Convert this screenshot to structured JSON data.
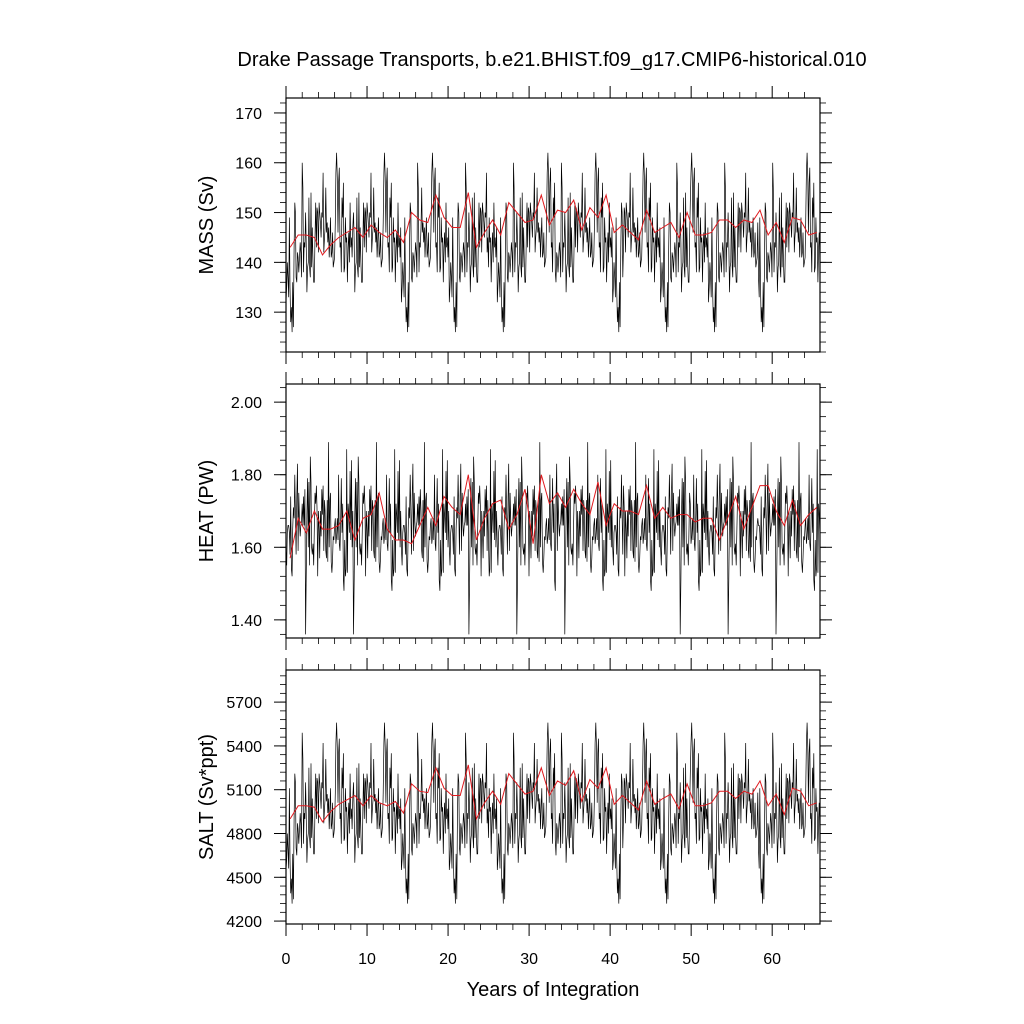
{
  "chart_data": {
    "title": "Drake Passage Transports, b.e21.BHIST.f09_g17.CMIP6-historical.010",
    "type": "line",
    "xlabel": "Years of Integration",
    "xlim": [
      0,
      65.9
    ],
    "xticks": [
      0,
      10,
      20,
      30,
      40,
      50,
      60
    ],
    "xtick_labels": [
      "0",
      "10",
      "20",
      "30",
      "40",
      "50",
      "60"
    ],
    "grid": false,
    "legend": "none",
    "colors": {
      "monthly": "#000000",
      "annual": "#e0191e",
      "frame": "#000000"
    },
    "panels": [
      {
        "ylabel": "MASS (Sv)",
        "ylim": [
          122,
          173
        ],
        "yticks": [
          130,
          140,
          150,
          160,
          170
        ],
        "ytick_labels": [
          "130",
          "140",
          "150",
          "160",
          "170"
        ],
        "annual_mean": {
          "x": [
            0.5,
            1.5,
            2.5,
            3.5,
            4.5,
            5.5,
            6.5,
            7.5,
            8.5,
            9.5,
            10.5,
            11.5,
            12.5,
            13.5,
            14.5,
            15.5,
            16.5,
            17.5,
            18.5,
            19.5,
            20.5,
            21.5,
            22.5,
            23.5,
            24.5,
            25.5,
            26.5,
            27.5,
            28.5,
            29.5,
            30.5,
            31.5,
            32.5,
            33.5,
            34.5,
            35.5,
            36.5,
            37.5,
            38.5,
            39.5,
            40.5,
            41.5,
            42.5,
            43.5,
            44.5,
            45.5,
            46.5,
            47.5,
            48.5,
            49.5,
            50.5,
            51.5,
            52.5,
            53.5,
            54.5,
            55.5,
            56.5,
            57.5,
            58.5,
            59.5,
            60.5,
            61.5,
            62.5,
            63.5,
            64.5,
            65.5
          ],
          "y": [
            143,
            145.5,
            145.5,
            145,
            141.5,
            143.5,
            145,
            146,
            147,
            145,
            147.5,
            146,
            145,
            146.5,
            144,
            150,
            148.5,
            148,
            153.5,
            149,
            147,
            147,
            154,
            143,
            146,
            148.5,
            145.5,
            152,
            150,
            148,
            148.5,
            153.5,
            147.5,
            150.5,
            150,
            152.5,
            146.5,
            151,
            149,
            153.5,
            146,
            147.5,
            146,
            144.5,
            150.5,
            146,
            147,
            148,
            145,
            150,
            145.5,
            145.5,
            146,
            148.5,
            148.5,
            147,
            148.5,
            148,
            150.5,
            145.5,
            148,
            144,
            149,
            148.5,
            145.5,
            146
          ]
        },
        "monthly": {
          "x_start": 0,
          "x_step": 0.0833,
          "y": [
            132,
            145,
            138,
            150,
            141,
            137,
            147,
            135,
            152,
            139,
            144,
            148,
            136,
            155,
            140,
            143,
            149,
            134,
            158,
            142,
            146,
            137,
            151,
            144,
            139,
            162,
            141,
            148,
            133,
            150,
            145,
            140,
            157,
            138,
            144,
            149,
            142,
            136,
            153,
            146,
            141,
            147,
            135,
            152,
            143,
            139,
            156,
            144,
            141,
            128,
            150,
            146,
            137,
            159,
            142,
            145,
            131,
            148,
            140,
            154,
            143,
            137,
            149,
            126,
            145,
            152,
            139,
            144,
            160,
            141,
            136,
            150,
            143,
            147,
            138,
            155,
            142,
            127,
            149,
            145,
            140,
            153,
            138,
            146,
            143,
            158,
            141,
            136,
            149,
            144,
            139,
            152,
            142,
            147,
            136,
            156,
            143,
            140,
            150,
            145
          ]
        }
      },
      {
        "ylabel": "HEAT (PW)",
        "ylim": [
          1.35,
          2.05
        ],
        "yticks": [
          1.4,
          1.6,
          1.8,
          2.0
        ],
        "ytick_labels": [
          "1.40",
          "1.60",
          "1.80",
          "2.00"
        ],
        "annual_mean": {
          "x": [
            0.5,
            1.5,
            2.5,
            3.5,
            4.5,
            5.5,
            6.5,
            7.5,
            8.5,
            9.5,
            10.5,
            11.5,
            12.5,
            13.5,
            14.5,
            15.5,
            16.5,
            17.5,
            18.5,
            19.5,
            20.5,
            21.5,
            22.5,
            23.5,
            24.5,
            25.5,
            26.5,
            27.5,
            28.5,
            29.5,
            30.5,
            31.5,
            32.5,
            33.5,
            34.5,
            35.5,
            36.5,
            37.5,
            38.5,
            39.5,
            40.5,
            41.5,
            42.5,
            43.5,
            44.5,
            45.5,
            46.5,
            47.5,
            48.5,
            49.5,
            50.5,
            51.5,
            52.5,
            53.5,
            54.5,
            55.5,
            56.5,
            57.5,
            58.5,
            59.5,
            60.5,
            61.5,
            62.5,
            63.5,
            64.5,
            65.5
          ],
          "y": [
            1.57,
            1.68,
            1.64,
            1.7,
            1.65,
            1.65,
            1.66,
            1.7,
            1.62,
            1.68,
            1.69,
            1.75,
            1.65,
            1.62,
            1.62,
            1.61,
            1.66,
            1.71,
            1.66,
            1.74,
            1.71,
            1.69,
            1.8,
            1.62,
            1.68,
            1.72,
            1.73,
            1.65,
            1.69,
            1.76,
            1.61,
            1.8,
            1.72,
            1.75,
            1.71,
            1.76,
            1.72,
            1.69,
            1.78,
            1.66,
            1.72,
            1.7,
            1.7,
            1.69,
            1.77,
            1.68,
            1.71,
            1.68,
            1.69,
            1.69,
            1.67,
            1.68,
            1.68,
            1.62,
            1.68,
            1.74,
            1.65,
            1.71,
            1.77,
            1.77,
            1.7,
            1.66,
            1.73,
            1.66,
            1.69,
            1.71
          ]
        },
        "monthly": {
          "x_start": 0,
          "x_step": 0.0833,
          "y": [
            1.6,
            1.75,
            1.48,
            1.36,
            1.66,
            1.58,
            1.7,
            1.55,
            1.72,
            1.62,
            1.51,
            1.68,
            1.74,
            1.59,
            1.64,
            1.77,
            1.52,
            1.69,
            1.61,
            1.83,
            1.57,
            1.66,
            1.71,
            1.54,
            1.79,
            1.63,
            1.59,
            1.73,
            1.66,
            1.52,
            1.87,
            1.6,
            1.68,
            1.75,
            1.56,
            1.64,
            1.7,
            1.53,
            1.78,
            1.62,
            1.67,
            1.89,
            1.58,
            1.65,
            1.72,
            1.55,
            1.8,
            1.63,
            1.6,
            1.74,
            1.57,
            1.69,
            1.85,
            1.61,
            1.66,
            1.73,
            1.54,
            1.7,
            1.64,
            1.78,
            1.59,
            1.67,
            1.75,
            1.52,
            1.63,
            1.81,
            1.6,
            1.68,
            1.72,
            1.56,
            1.65,
            1.76,
            1.62,
            1.58,
            1.79,
            1.66,
            1.53,
            1.71,
            1.69,
            1.84,
            1.61,
            1.64,
            1.74,
            1.57,
            1.68,
            1.77,
            1.6,
            1.55,
            1.72,
            1.66,
            1.63,
            1.8,
            1.59,
            1.7,
            1.65,
            1.51,
            1.76,
            1.62,
            1.69,
            1.73
          ]
        }
      },
      {
        "ylabel": "SALT (Sv*ppt)",
        "ylim": [
          4180,
          5920
        ],
        "yticks": [
          4200,
          4500,
          4800,
          5100,
          5400,
          5700
        ],
        "ytick_labels": [
          "4200",
          "4500",
          "4800",
          "5100",
          "5400",
          "5700"
        ],
        "annual_mean": {
          "x": [
            0.5,
            1.5,
            2.5,
            3.5,
            4.5,
            5.5,
            6.5,
            7.5,
            8.5,
            9.5,
            10.5,
            11.5,
            12.5,
            13.5,
            14.5,
            15.5,
            16.5,
            17.5,
            18.5,
            19.5,
            20.5,
            21.5,
            22.5,
            23.5,
            24.5,
            25.5,
            26.5,
            27.5,
            28.5,
            29.5,
            30.5,
            31.5,
            32.5,
            33.5,
            34.5,
            35.5,
            36.5,
            37.5,
            38.5,
            39.5,
            40.5,
            41.5,
            42.5,
            43.5,
            44.5,
            45.5,
            46.5,
            47.5,
            48.5,
            49.5,
            50.5,
            51.5,
            52.5,
            53.5,
            54.5,
            55.5,
            56.5,
            57.5,
            58.5,
            59.5,
            60.5,
            61.5,
            62.5,
            63.5,
            64.5,
            65.5
          ],
          "y": [
            4900,
            4990,
            4990,
            4980,
            4880,
            4950,
            5000,
            5030,
            5060,
            4990,
            5060,
            5010,
            4990,
            5020,
            4940,
            5140,
            5090,
            5080,
            5250,
            5110,
            5060,
            5060,
            5270,
            4900,
            5010,
            5090,
            5000,
            5210,
            5140,
            5070,
            5090,
            5250,
            5060,
            5160,
            5130,
            5230,
            5020,
            5170,
            5110,
            5250,
            5000,
            5060,
            5010,
            4960,
            5160,
            5000,
            5040,
            5070,
            4970,
            5140,
            4990,
            4990,
            5010,
            5090,
            5090,
            5040,
            5090,
            5070,
            5160,
            4990,
            5070,
            4930,
            5110,
            5090,
            4990,
            5010
          ]
        },
        "monthly": {
          "x_start": 0,
          "x_step": 0.0833,
          "y": [
            4550,
            4980,
            4750,
            5150,
            4850,
            4700,
            5040,
            4620,
            5210,
            4770,
            4940,
            5080,
            4650,
            5310,
            4800,
            4900,
            5110,
            4600,
            5420,
            4870,
            5020,
            4690,
            5180,
            4950,
            4760,
            5560,
            4830,
            5070,
            4560,
            5150,
            4980,
            4800,
            5390,
            4730,
            4940,
            5110,
            4870,
            4660,
            5250,
            5010,
            4830,
            5040,
            4630,
            5210,
            4900,
            4770,
            5350,
            4940,
            4830,
            4390,
            5150,
            5010,
            4700,
            5450,
            4870,
            4970,
            4490,
            5070,
            4800,
            5280,
            4900,
            4700,
            5110,
            4320,
            4970,
            5210,
            4770,
            4940,
            5490,
            4830,
            4660,
            5150,
            4900,
            5040,
            4730,
            5310,
            4870,
            4350,
            5110,
            4970,
            4800,
            5250,
            4730,
            5010,
            4900,
            5420,
            4830,
            4660,
            5110,
            4940,
            4770,
            5210,
            4870,
            5040,
            4660,
            5350,
            4900,
            4800,
            5150,
            4970
          ]
        }
      }
    ]
  }
}
